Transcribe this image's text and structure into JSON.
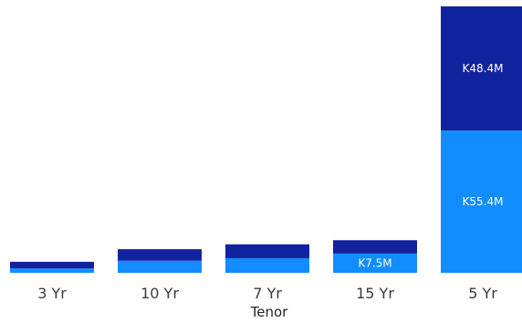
{
  "chart_data": {
    "type": "bar",
    "stacked": true,
    "xlabel": "Tenor",
    "categories": [
      "3 Yr",
      "10 Yr",
      "7 Yr",
      "15 Yr",
      "5 Yr"
    ],
    "series": [
      {
        "color": "#118DFF",
        "values": [
          1.7,
          4.7,
          5.7,
          7.5,
          55.4
        ],
        "labels": [
          "",
          "",
          "",
          "K7.5M",
          "K55.4M"
        ]
      },
      {
        "color": "#12239E",
        "values": [
          2.6,
          4.5,
          5.4,
          5.2,
          48.4
        ],
        "labels": [
          "",
          "",
          "",
          "",
          "K48.4M"
        ]
      }
    ]
  }
}
